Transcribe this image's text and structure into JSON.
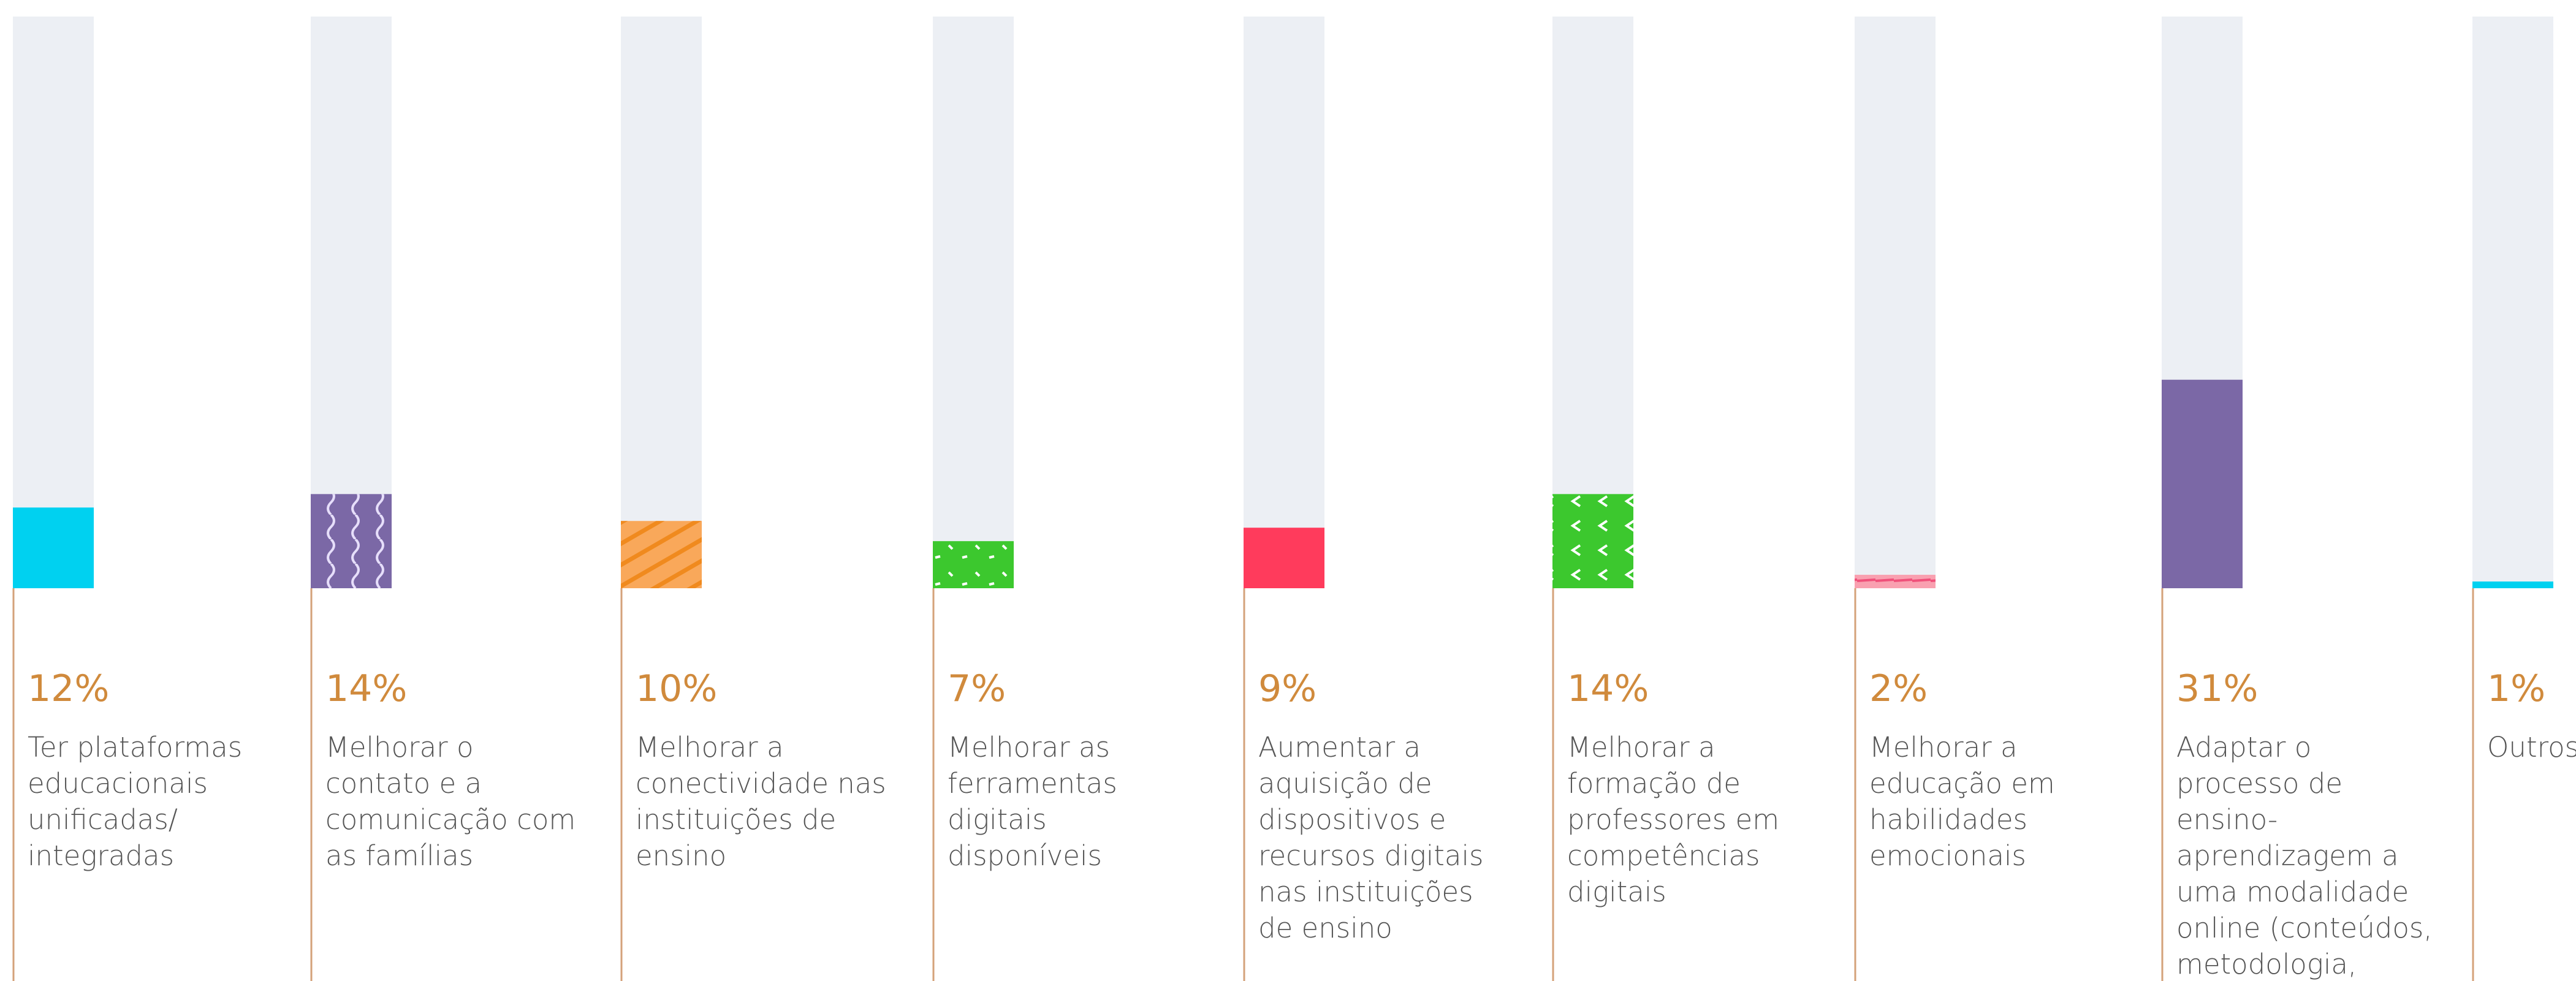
{
  "chart_data": {
    "type": "bar",
    "categories": [
      "Ter plataformas educacionais unificadas/ integradas",
      "Melhorar o contato e a comunicação com as famílias",
      "Melhorar a conectividade nas instituições de ensino",
      "Melhorar as ferramentas digitais disponíveis",
      "Aumentar a aquisição de dispositivos e recursos digitais nas instituições de ensino",
      "Melhorar a formação de professores em competências digitais",
      "Melhorar a educação em habilidades emocionais",
      "Adaptar o processo de ensino-aprendizagem a uma modalidade online (conteúdos, metodologia, avaliação)",
      "Outros"
    ],
    "values": [
      12,
      14,
      10,
      7,
      9,
      14,
      2,
      31,
      1
    ],
    "value_labels": [
      "12%",
      "14%",
      "10%",
      "7%",
      "9%",
      "14%",
      "2%",
      "31%",
      "1%"
    ],
    "colors": [
      "#00d1f0",
      "#7b68a6",
      "#f9a85a",
      "#3cc82e",
      "#ff3b5c",
      "#3cc82e",
      "#f9a0b0",
      "#7b68a6",
      "#00d1f0"
    ],
    "ylim": [
      0,
      85
    ]
  }
}
